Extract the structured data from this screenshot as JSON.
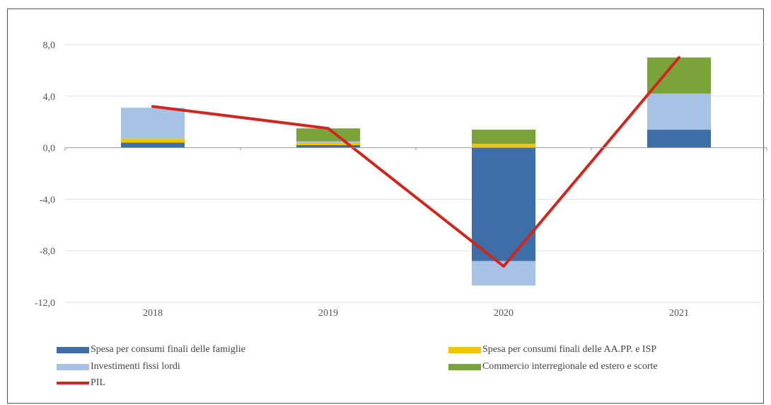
{
  "chart_data": {
    "type": "bar",
    "stacked": true,
    "categories": [
      "2018",
      "2019",
      "2020",
      "2021"
    ],
    "ylim": [
      -12,
      10
    ],
    "yticks": [
      -12,
      -8,
      -4,
      0,
      4,
      8
    ],
    "ytick_labels": [
      "-12,0",
      "-8,0",
      "-4,0",
      "0,0",
      "4,0",
      "8,0"
    ],
    "grid": true,
    "legend_position": "bottom",
    "series": [
      {
        "name": "Spesa per consumi finali delle famiglie",
        "color": "#3e6ea8",
        "values": [
          0.4,
          0.2,
          -8.8,
          1.4
        ]
      },
      {
        "name": "Spesa per consumi finali delle AA.PP. e ISP",
        "color": "#f4c400",
        "values": [
          0.3,
          0.2,
          0.3,
          0.0
        ]
      },
      {
        "name": "Investimenti fissi lordi",
        "color": "#a7c2e4",
        "values": [
          2.4,
          0.1,
          -1.9,
          2.8
        ]
      },
      {
        "name": "Commercio interregionale ed estero e scorte",
        "color": "#7aa33a",
        "values": [
          0.0,
          1.0,
          1.1,
          2.8
        ]
      }
    ],
    "line": {
      "name": "PIL",
      "color": "#d0261d",
      "values": [
        3.2,
        1.5,
        -9.2,
        7.0
      ]
    }
  }
}
